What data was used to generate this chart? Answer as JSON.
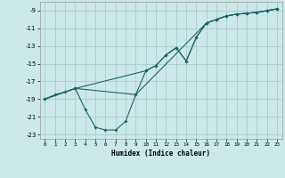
{
  "xlabel": "Humidex (Indice chaleur)",
  "bg_color": "#cce8e8",
  "grid_color": "#aacccc",
  "line_color": "#1a6666",
  "xlim": [
    -0.5,
    23.5
  ],
  "ylim": [
    -23.5,
    -8.0
  ],
  "xticks": [
    0,
    1,
    2,
    3,
    4,
    5,
    6,
    7,
    8,
    9,
    10,
    11,
    12,
    13,
    14,
    15,
    16,
    17,
    18,
    19,
    20,
    21,
    22,
    23
  ],
  "yticks": [
    -9,
    -11,
    -13,
    -15,
    -17,
    -19,
    -21,
    -23
  ],
  "line_straight_x": [
    0,
    3,
    10,
    11,
    12,
    13,
    14,
    15,
    16,
    17,
    18,
    19,
    20,
    21,
    22,
    23
  ],
  "line_straight_y": [
    -19.0,
    -17.8,
    -15.8,
    -15.2,
    -14.0,
    -13.2,
    -14.7,
    -12.0,
    -10.4,
    -10.0,
    -9.6,
    -9.4,
    -9.3,
    -9.2,
    -9.0,
    -8.8
  ],
  "line_loop_x": [
    0,
    1,
    2,
    3,
    4,
    5,
    6,
    7,
    8,
    9,
    10,
    11,
    12,
    13,
    14,
    15,
    16,
    17,
    18,
    19,
    20,
    21,
    22,
    23
  ],
  "line_loop_y": [
    -19.0,
    -18.5,
    -18.2,
    -17.8,
    -20.2,
    -22.2,
    -22.5,
    -22.5,
    -21.5,
    -18.5,
    -15.8,
    -15.2,
    -14.0,
    -13.2,
    -14.7,
    -12.0,
    -10.4,
    -10.0,
    -9.6,
    -9.4,
    -9.3,
    -9.2,
    -9.0,
    -8.8
  ],
  "line_mid_x": [
    0,
    3,
    9,
    16,
    17,
    18,
    19,
    20,
    21,
    22,
    23
  ],
  "line_mid_y": [
    -19.0,
    -17.8,
    -18.5,
    -10.4,
    -10.0,
    -9.6,
    -9.4,
    -9.3,
    -9.2,
    -9.0,
    -8.8
  ]
}
